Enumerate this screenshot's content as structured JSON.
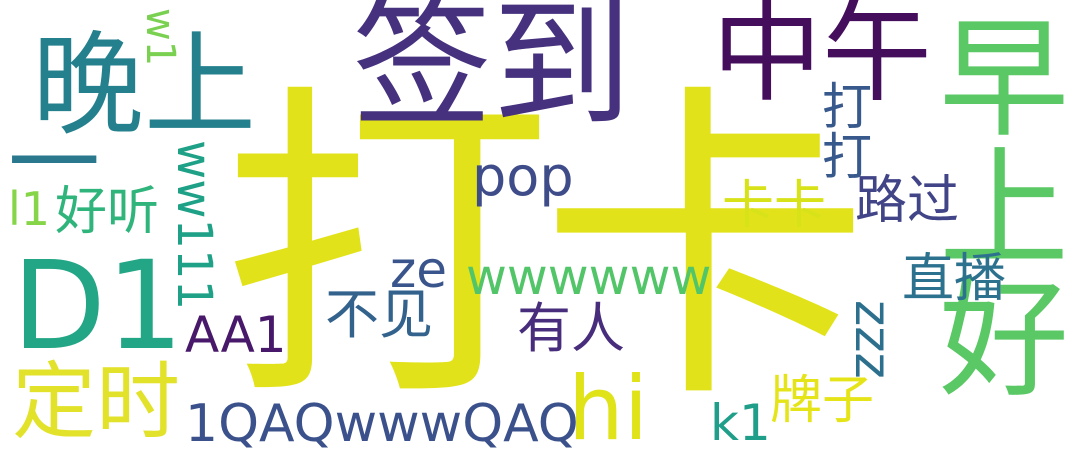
{
  "word_cloud": {
    "words": [
      {
        "id": "daka",
        "text": "打卡",
        "color": "#e2e21b"
      },
      {
        "id": "qiandao",
        "text": "签到",
        "color": "#46317e"
      },
      {
        "id": "zhongwu",
        "text": "中午",
        "color": "#450e5c"
      },
      {
        "id": "zaoshanghao",
        "text": "早上好",
        "color": "#5ac864"
      },
      {
        "id": "wanshang",
        "text": "晚上",
        "color": "#25808e"
      },
      {
        "id": "d1",
        "text": "D1",
        "color": "#22a685"
      },
      {
        "id": "dingshi",
        "text": "定时",
        "color": "#e2e22a"
      },
      {
        "id": "yi",
        "text": "一",
        "color": "#2a788e"
      },
      {
        "id": "w1",
        "text": "w1",
        "color": "#7ad151"
      },
      {
        "id": "l1",
        "text": "l1",
        "color": "#86d549"
      },
      {
        "id": "haoting",
        "text": "好听",
        "color": "#2fb47c"
      },
      {
        "id": "ww111",
        "text": "ww111",
        "color": "#1fa187"
      },
      {
        "id": "pop",
        "text": "pop",
        "color": "#3e4c8a"
      },
      {
        "id": "dada",
        "text": "打打",
        "color": "#38598c"
      },
      {
        "id": "kaka",
        "text": "卡卡",
        "color": "#d8e219"
      },
      {
        "id": "luguo",
        "text": "路过",
        "color": "#414487"
      },
      {
        "id": "ze",
        "text": "ze",
        "color": "#3a548c"
      },
      {
        "id": "wwwwww",
        "text": "wwwwww",
        "color": "#52c569"
      },
      {
        "id": "zhibo",
        "text": "直播",
        "color": "#2c728e"
      },
      {
        "id": "aa1",
        "text": "AA1",
        "color": "#48186a"
      },
      {
        "id": "bujian",
        "text": "不见",
        "color": "#33638d"
      },
      {
        "id": "youren",
        "text": "有人",
        "color": "#472d7b"
      },
      {
        "id": "zzz",
        "text": "zzz",
        "color": "#2d708e"
      },
      {
        "id": "hi",
        "text": "hi",
        "color": "#dfe318"
      },
      {
        "id": "qaq",
        "text": "1QAQwwwQAQ",
        "color": "#3b518b"
      },
      {
        "id": "k1",
        "text": "k1",
        "color": "#1f9e89"
      },
      {
        "id": "paizi",
        "text": "牌子",
        "color": "#e5e419"
      }
    ]
  }
}
